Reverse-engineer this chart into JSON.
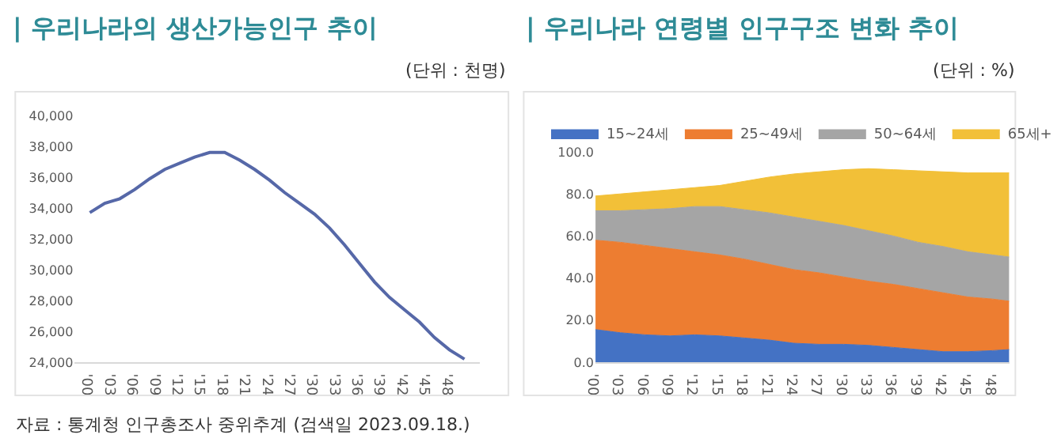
{
  "chart_data": [
    {
      "type": "line",
      "title": "| 우리나라의 생산가능인구 추이",
      "subtitle": "(단위 : 천명)",
      "annotations": [
        "자료 : 통계청 인구총조사 중위추계 (검색일 2023.09.18.)"
      ],
      "x": [
        2000,
        2002,
        2004,
        2006,
        2008,
        2010,
        2012,
        2014,
        2016,
        2018,
        2020,
        2022,
        2024,
        2026,
        2028,
        2030,
        2032,
        2034,
        2036,
        2038,
        2040,
        2042,
        2044,
        2046,
        2048,
        2050
      ],
      "series": [
        {
          "color": "#5668a8",
          "values": [
            33700,
            34300,
            34600,
            35200,
            35900,
            36500,
            36900,
            37300,
            37600,
            37600,
            37100,
            36500,
            35800,
            35000,
            34300,
            33600,
            32700,
            31600,
            30400,
            29200,
            28200,
            27400,
            26600,
            25600,
            24800,
            24200
          ]
        }
      ],
      "xlim": [
        1998,
        2052
      ],
      "xticks": [
        {
          "value": 2000,
          "label": "'00"
        },
        {
          "value": 2003,
          "label": "'03"
        },
        {
          "value": 2006,
          "label": "'06"
        },
        {
          "value": 2009,
          "label": "'09"
        },
        {
          "value": 2012,
          "label": "'12"
        },
        {
          "value": 2015,
          "label": "'15"
        },
        {
          "value": 2018,
          "label": "'18"
        },
        {
          "value": 2021,
          "label": "'21"
        },
        {
          "value": 2024,
          "label": "'24"
        },
        {
          "value": 2027,
          "label": "'27"
        },
        {
          "value": 2030,
          "label": "'30"
        },
        {
          "value": 2033,
          "label": "'33"
        },
        {
          "value": 2036,
          "label": "'36"
        },
        {
          "value": 2039,
          "label": "'39"
        },
        {
          "value": 2042,
          "label": "'42"
        },
        {
          "value": 2045,
          "label": "'45"
        },
        {
          "value": 2048,
          "label": "'48"
        }
      ],
      "ylim": [
        24000,
        40000
      ],
      "yticks": [
        {
          "value": 24000,
          "label": "24,000"
        },
        {
          "value": 26000,
          "label": "26,000"
        },
        {
          "value": 28000,
          "label": "28,000"
        },
        {
          "value": 30000,
          "label": "30,000"
        },
        {
          "value": 32000,
          "label": "32,000"
        },
        {
          "value": 34000,
          "label": "34,000"
        },
        {
          "value": 36000,
          "label": "36,000"
        },
        {
          "value": 38000,
          "label": "38,000"
        },
        {
          "value": 40000,
          "label": "40,000"
        }
      ],
      "marker": "none",
      "line_style": "solid"
    },
    {
      "type": "area",
      "stacked": true,
      "title": "| 우리나라 연령별 인구구조 변화 추이",
      "subtitle": "(단위 : %)",
      "x": [
        2000,
        2003,
        2006,
        2009,
        2012,
        2015,
        2018,
        2021,
        2024,
        2027,
        2030,
        2033,
        2036,
        2039,
        2042,
        2045,
        2048,
        2050
      ],
      "series": [
        {
          "name": "15~24세",
          "color": "#4472c4",
          "values": [
            15.5,
            14,
            13,
            12.5,
            13,
            12.5,
            11.5,
            10.5,
            9,
            8.5,
            8.5,
            8,
            7,
            6,
            5,
            5,
            5.5,
            6
          ]
        },
        {
          "name": "25~49세",
          "color": "#ed7d31",
          "values": [
            42.5,
            43,
            42.5,
            41.5,
            39.5,
            38.5,
            37.5,
            36,
            35,
            34,
            32,
            30.5,
            30,
            29,
            28,
            26,
            24.5,
            23
          ]
        },
        {
          "name": "50~64세",
          "color": "#a5a5a5",
          "values": [
            14,
            15,
            17,
            19,
            21.5,
            23,
            23.5,
            24.5,
            25,
            24.5,
            24.5,
            24,
            23,
            22,
            22,
            21.5,
            21,
            21
          ]
        },
        {
          "name": "65세+",
          "color": "#f2c038",
          "values": [
            7,
            8,
            8.5,
            9,
            9,
            10,
            13.5,
            17,
            20.5,
            23.5,
            26.5,
            29.5,
            31.5,
            34,
            35.5,
            37.5,
            39,
            40
          ]
        }
      ],
      "xlim": [
        2000,
        2050
      ],
      "xticks": [
        {
          "value": 2000,
          "label": "'00"
        },
        {
          "value": 2003,
          "label": "'03"
        },
        {
          "value": 2006,
          "label": "'06"
        },
        {
          "value": 2009,
          "label": "'09"
        },
        {
          "value": 2012,
          "label": "'12"
        },
        {
          "value": 2015,
          "label": "'15"
        },
        {
          "value": 2018,
          "label": "'18"
        },
        {
          "value": 2021,
          "label": "'21"
        },
        {
          "value": 2024,
          "label": "'24"
        },
        {
          "value": 2027,
          "label": "'27"
        },
        {
          "value": 2030,
          "label": "'30"
        },
        {
          "value": 2033,
          "label": "'33"
        },
        {
          "value": 2036,
          "label": "'36"
        },
        {
          "value": 2039,
          "label": "'39"
        },
        {
          "value": 2042,
          "label": "'42"
        },
        {
          "value": 2045,
          "label": "'45"
        },
        {
          "value": 2048,
          "label": "'48"
        }
      ],
      "ylim": [
        0,
        100
      ],
      "yticks": [
        {
          "value": 0,
          "label": "0.0"
        },
        {
          "value": 20,
          "label": "20.0"
        },
        {
          "value": 40,
          "label": "40.0"
        },
        {
          "value": 60,
          "label": "60.0"
        },
        {
          "value": 80,
          "label": "80.0"
        },
        {
          "value": 100,
          "label": "100.0"
        }
      ],
      "legend": "top"
    }
  ]
}
